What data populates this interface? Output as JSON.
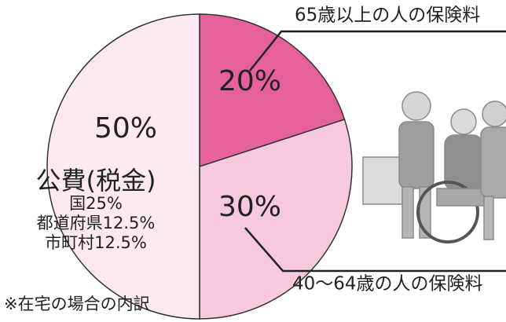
{
  "chart_data": {
    "type": "pie",
    "categories": [
      "65歳以上の人の保険料",
      "40〜64歳の人の保険料",
      "公費(税金)"
    ],
    "values": [
      20,
      30,
      50
    ],
    "value_labels": [
      "20%",
      "30%",
      "50%"
    ],
    "colors": [
      "#e6609b",
      "#f7c9dd",
      "#fde9f1"
    ],
    "breakdown": [
      "国25%",
      "都道府県12.5%",
      "市町村12.5%"
    ],
    "note": "※在宅の場合の内訳"
  }
}
